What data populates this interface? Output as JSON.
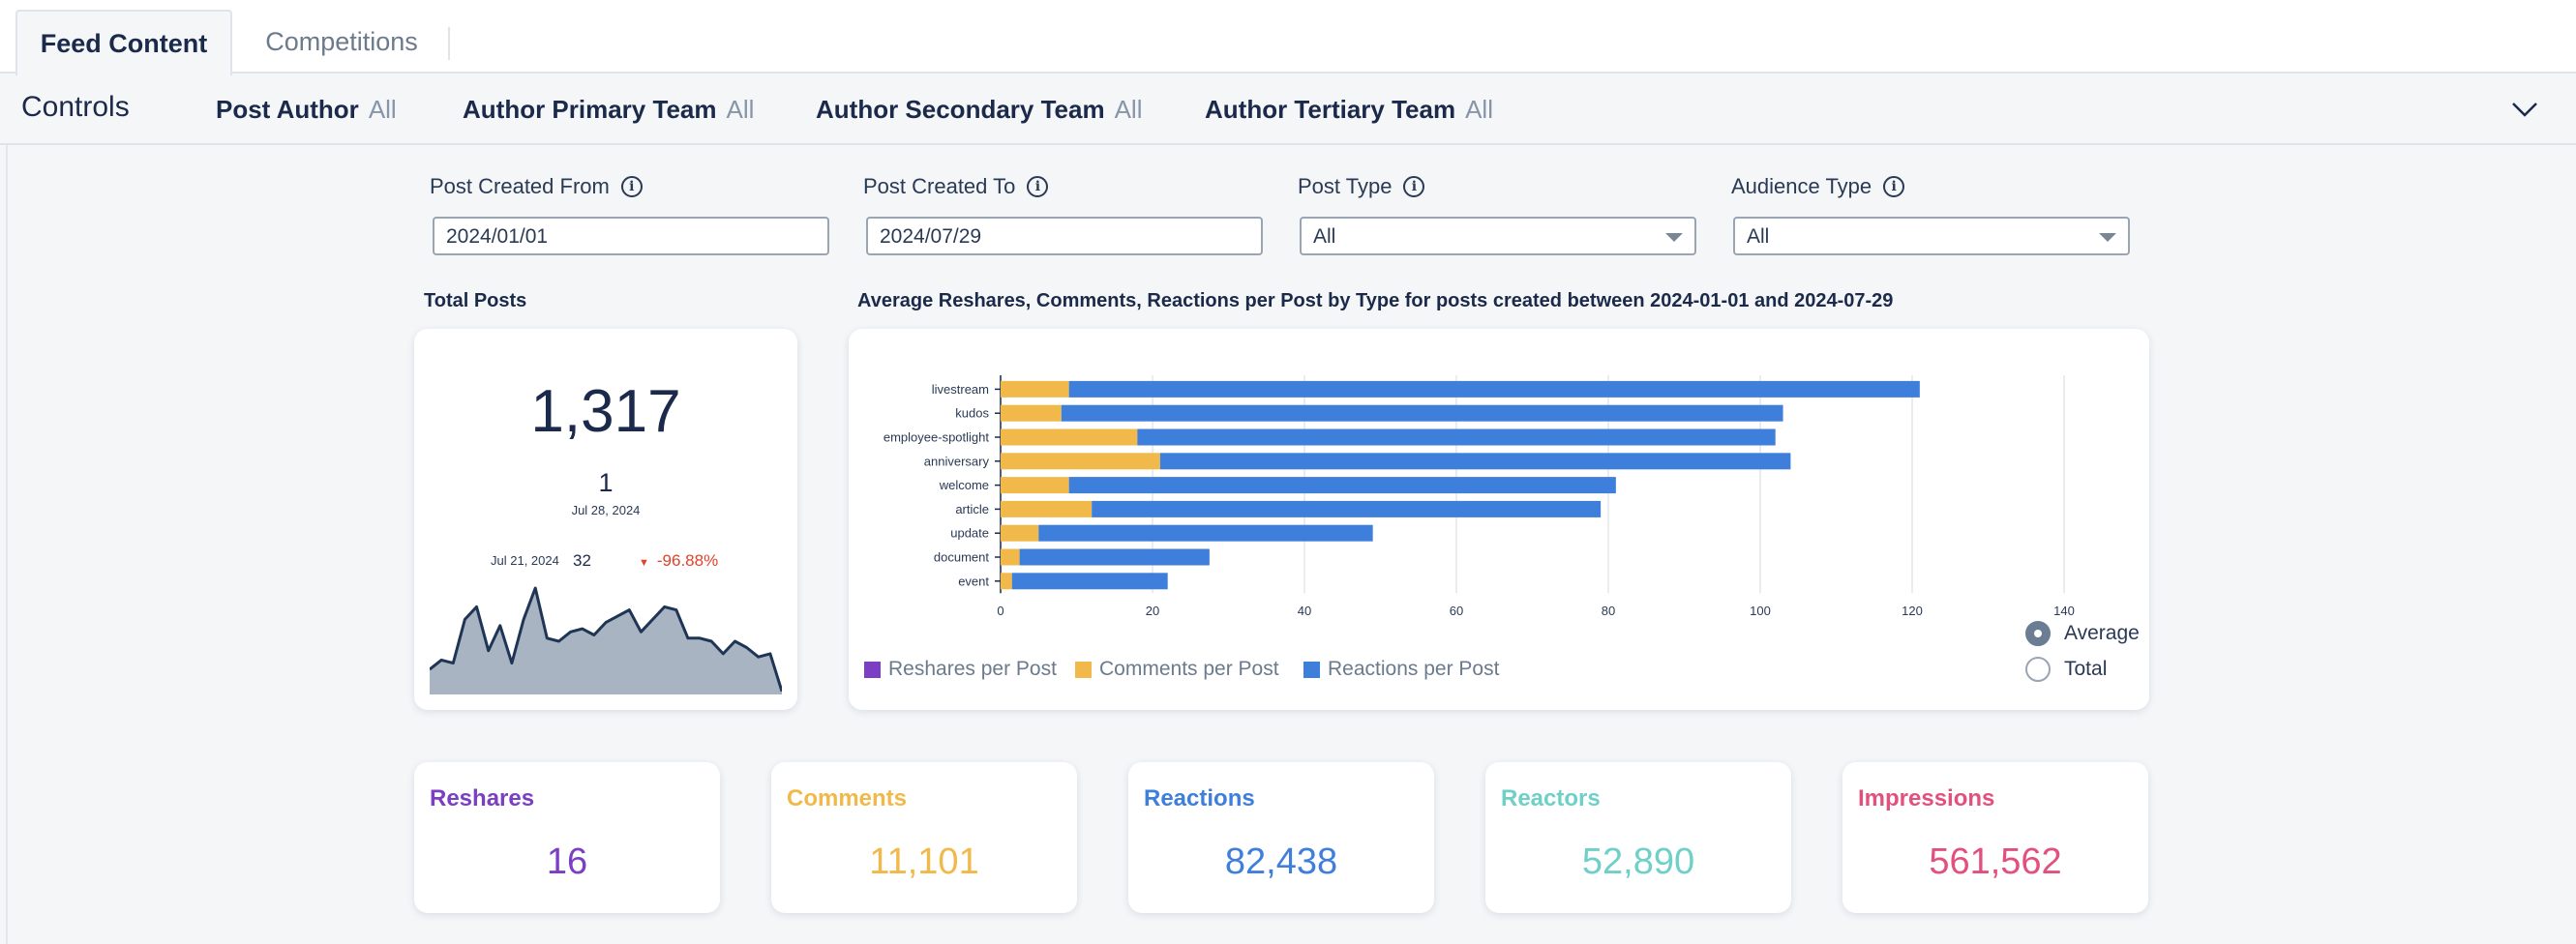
{
  "tabs": [
    {
      "label": "Feed Content",
      "active": true
    },
    {
      "label": "Competitions",
      "active": false
    }
  ],
  "controls": {
    "title": "Controls",
    "filters": [
      {
        "label": "Post Author",
        "value": "All"
      },
      {
        "label": "Author Primary Team",
        "value": "All"
      },
      {
        "label": "Author Secondary Team",
        "value": "All"
      },
      {
        "label": "Author Tertiary Team",
        "value": "All"
      }
    ]
  },
  "fields": {
    "created_from": {
      "label": "Post Created From",
      "value": "2024/01/01"
    },
    "created_to": {
      "label": "Post Created To",
      "value": "2024/07/29"
    },
    "post_type": {
      "label": "Post Type",
      "value": "All"
    },
    "audience_type": {
      "label": "Audience Type",
      "value": "All"
    }
  },
  "total_posts": {
    "title": "Total Posts",
    "value": "1,317",
    "latest_value": "1",
    "latest_date": "Jul 28, 2024",
    "compare_date": "Jul 21, 2024",
    "compare_value": "32",
    "delta": "-96.88%",
    "sparkline": [
      8,
      11,
      10,
      24,
      28,
      14,
      22,
      10,
      24,
      34,
      18,
      17,
      20,
      21,
      19,
      23,
      25,
      27,
      20,
      24,
      28,
      27,
      18,
      18,
      17,
      13,
      17,
      15,
      12,
      13,
      1
    ]
  },
  "chart_data": {
    "type": "bar",
    "orientation": "horizontal",
    "stacked": true,
    "title": "Average Reshares, Comments, Reactions per Post by Type for posts created between 2024-01-01 and 2024-07-29",
    "categories": [
      "livestream",
      "kudos",
      "employee-spotlight",
      "anniversary",
      "welcome",
      "article",
      "update",
      "document",
      "event"
    ],
    "series": [
      {
        "name": "Reshares per Post",
        "color": "#7b3fc4",
        "values": [
          0,
          0,
          0,
          0,
          0,
          0,
          0,
          0,
          0
        ]
      },
      {
        "name": "Comments per Post",
        "color": "#f0b94a",
        "values": [
          9,
          8,
          18,
          21,
          9,
          12,
          5,
          2.5,
          1.5
        ]
      },
      {
        "name": "Reactions per Post",
        "color": "#3f7fdc",
        "values": [
          112,
          95,
          84,
          83,
          72,
          67,
          44,
          25,
          20.5
        ]
      }
    ],
    "xlim": [
      0,
      140
    ],
    "xticks": [
      0,
      20,
      40,
      60,
      80,
      100,
      120,
      140
    ],
    "xlabel": "",
    "ylabel": "",
    "grid": true,
    "legend": "bottom-left"
  },
  "chart_toggle": {
    "options": [
      "Average",
      "Total"
    ],
    "selected": "Average"
  },
  "kpis": [
    {
      "label": "Reshares",
      "value": "16",
      "color": "#7b3fc4"
    },
    {
      "label": "Comments",
      "value": "11,101",
      "color": "#f0b94a"
    },
    {
      "label": "Reactions",
      "value": "82,438",
      "color": "#3f7fdc"
    },
    {
      "label": "Reactors",
      "value": "52,890",
      "color": "#6fd0c8"
    },
    {
      "label": "Impressions",
      "value": "561,562",
      "color": "#e2507e"
    }
  ],
  "colors": {
    "navy": "#1b2a4a",
    "spark_fill": "#a9b4c2",
    "spark_line": "#1f3556",
    "delta_red": "#e0432b"
  }
}
